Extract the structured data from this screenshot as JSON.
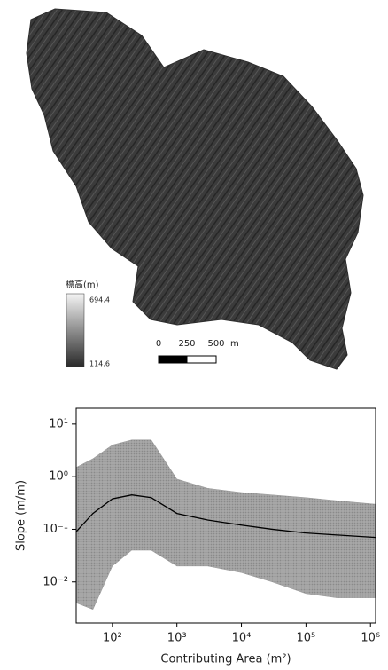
{
  "map": {
    "legend_title": "標高(m)",
    "legend_max": 694.4,
    "legend_min": 114.6,
    "scale_ticks": [
      0,
      250,
      500
    ],
    "scale_unit": "m"
  },
  "chart_data": {
    "type": "scatter",
    "xlabel": "Contributing Area (m²)",
    "ylabel": "Slope (m/m)",
    "xscale": "log",
    "yscale": "log",
    "xlim": [
      27.5,
      1200000
    ],
    "ylim": [
      0.00166,
      20
    ],
    "xticks": [
      {
        "value": 100,
        "label": "10²"
      },
      {
        "value": 1000,
        "label": "10³"
      },
      {
        "value": 10000,
        "label": "10⁴"
      },
      {
        "value": 100000,
        "label": "10⁵"
      },
      {
        "value": 1000000,
        "label": "10⁶"
      }
    ],
    "yticks": [
      {
        "value": 0.01,
        "label": "10⁻²"
      },
      {
        "value": 0.1,
        "label": "10⁻¹"
      },
      {
        "value": 1,
        "label": "10⁰"
      },
      {
        "value": 10,
        "label": "10¹"
      }
    ],
    "x": [
      27.5,
      50,
      100,
      200,
      400,
      1000,
      3000,
      10000,
      30000,
      100000,
      300000,
      1200000
    ],
    "series": [
      {
        "type": "scatter",
        "color": "#9a9a9a",
        "values": [
          1.5,
          2.2,
          4,
          5,
          5,
          0.9,
          0.6,
          0.5,
          0.45,
          0.4,
          0.35,
          0.3
        ],
        "lower": [
          0.004,
          0.003,
          0.02,
          0.04,
          0.04,
          0.02,
          0.02,
          0.015,
          0.01,
          0.006,
          0.005,
          0.005
        ]
      },
      {
        "type": "line",
        "color": "#000000",
        "values": [
          0.09,
          0.2,
          0.38,
          0.45,
          0.4,
          0.2,
          0.15,
          0.12,
          0.1,
          0.085,
          0.078,
          0.07
        ]
      }
    ]
  }
}
